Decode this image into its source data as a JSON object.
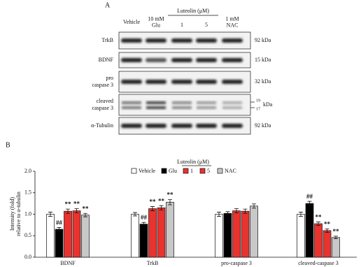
{
  "blot": {
    "panel": "A",
    "group_label": "Luteolin (μM)",
    "columns": [
      [
        "Vehicle"
      ],
      [
        "10 mM",
        "Glu"
      ],
      [
        "1"
      ],
      [
        "5"
      ],
      [
        "1 mM",
        "NAC"
      ]
    ],
    "rows": [
      {
        "label": [
          "TrkB"
        ],
        "size": [
          "92 kDa"
        ]
      },
      {
        "label": [
          "BDNF"
        ],
        "size": [
          "15 kDa"
        ]
      },
      {
        "label": [
          "pro",
          "caspase 3"
        ],
        "size": [
          "32 kDa"
        ]
      },
      {
        "label": [
          "cleaved",
          "caspase 3"
        ],
        "size": [
          "19",
          "kDa",
          "17"
        ]
      },
      {
        "label": [
          "α-Tubulin"
        ],
        "size": [
          "92 kDa"
        ]
      }
    ]
  },
  "chart_data": {
    "type": "bar",
    "panel": "B",
    "y_label": [
      "Intensity (fold)",
      "relative to α-tubulin"
    ],
    "legend_title": "Luteolin (μM)",
    "categories": [
      "BDNF",
      "TrkB",
      "pro-caspase 3",
      "cleaved-caspase 3"
    ],
    "ylim": [
      0,
      2
    ],
    "yticks": [
      {
        "value": 0,
        "label": "0.0"
      },
      {
        "value": 0.5,
        "label": "0.5"
      },
      {
        "value": 1,
        "label": "1.0"
      },
      {
        "value": 1.5,
        "label": "1.5"
      },
      {
        "value": 2,
        "label": "2.0"
      }
    ],
    "series": [
      {
        "name": "Vehicle",
        "color": "#ffffff",
        "values": [
          1.0,
          1.0,
          1.0,
          1.0
        ],
        "errors": [
          0.05,
          0.04,
          0.05,
          0.05
        ],
        "significance": [
          null,
          null,
          null,
          null
        ]
      },
      {
        "name": "Glu",
        "color": "#000000",
        "values": [
          0.65,
          0.77,
          1.02,
          1.25
        ],
        "errors": [
          0.04,
          0.04,
          0.04,
          0.05
        ],
        "significance": [
          "##",
          "##",
          null,
          "##"
        ]
      },
      {
        "name": "1",
        "color": "#e8332f",
        "values": [
          1.07,
          1.13,
          1.08,
          0.78
        ],
        "errors": [
          0.05,
          0.05,
          0.05,
          0.04
        ],
        "significance": [
          "**",
          "**",
          null,
          "**"
        ]
      },
      {
        "name": "5",
        "color": "#e8332f",
        "values": [
          1.08,
          1.15,
          1.07,
          0.62
        ],
        "errors": [
          0.05,
          0.05,
          0.05,
          0.04
        ],
        "significance": [
          "**",
          "**",
          null,
          "**"
        ]
      },
      {
        "name": "NAC",
        "color": "#c8c8c8",
        "values": [
          0.98,
          1.28,
          1.19,
          0.46
        ],
        "errors": [
          0.04,
          0.06,
          0.05,
          0.03
        ],
        "significance": [
          "**",
          "**",
          null,
          "**"
        ]
      }
    ]
  }
}
